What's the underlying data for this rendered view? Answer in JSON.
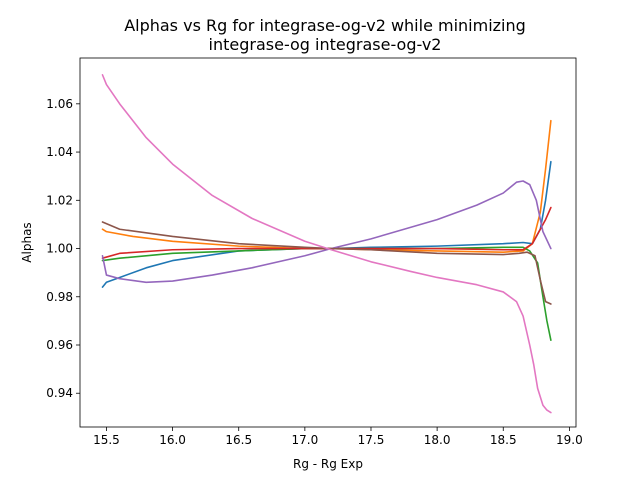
{
  "chart_data": {
    "type": "line",
    "title_lines": [
      "Alphas vs Rg for integrase-og-v2 while minimizing",
      "integrase-og integrase-og-v2"
    ],
    "xlabel": "Rg - Rg Exp",
    "ylabel": "Alphas",
    "xlim": [
      15.3,
      19.05
    ],
    "ylim": [
      0.926,
      1.079
    ],
    "xticks": [
      15.5,
      16.0,
      16.5,
      17.0,
      17.5,
      18.0,
      18.5,
      19.0
    ],
    "xtick_labels": [
      "15.5",
      "16.0",
      "16.5",
      "17.0",
      "17.5",
      "18.0",
      "18.5",
      "19.0"
    ],
    "yticks": [
      0.94,
      0.96,
      0.98,
      1.0,
      1.02,
      1.04,
      1.06
    ],
    "ytick_labels": [
      "0.94",
      "0.96",
      "0.98",
      "1.00",
      "1.02",
      "1.04",
      "1.06"
    ],
    "grid": false,
    "series": [
      {
        "color": "#1f77b4",
        "x": [
          15.47,
          15.5,
          15.6,
          15.8,
          16.0,
          16.5,
          17.0,
          17.2,
          17.5,
          18.0,
          18.5,
          18.65,
          18.72,
          18.78,
          18.82,
          18.86
        ],
        "y": [
          0.984,
          0.986,
          0.988,
          0.992,
          0.995,
          0.999,
          1.0,
          1.0,
          1.0005,
          1.001,
          1.002,
          1.0025,
          1.002,
          1.008,
          1.02,
          1.036
        ]
      },
      {
        "color": "#ff7f0e",
        "x": [
          15.47,
          15.5,
          15.7,
          16.0,
          16.5,
          17.0,
          17.2,
          17.5,
          18.0,
          18.5,
          18.65,
          18.72,
          18.78,
          18.82,
          18.86
        ],
        "y": [
          1.008,
          1.007,
          1.005,
          1.003,
          1.001,
          1.0,
          1.0,
          0.9995,
          0.999,
          0.9985,
          0.999,
          1.002,
          1.015,
          1.033,
          1.053
        ]
      },
      {
        "color": "#2ca02c",
        "x": [
          15.47,
          15.6,
          16.0,
          16.5,
          17.0,
          17.2,
          17.5,
          18.0,
          18.5,
          18.65,
          18.7,
          18.76,
          18.8,
          18.83,
          18.86
        ],
        "y": [
          0.995,
          0.996,
          0.998,
          0.999,
          1.0,
          1.0,
          1.0,
          1.0,
          1.0005,
          1.0005,
          0.999,
          0.994,
          0.98,
          0.97,
          0.962
        ]
      },
      {
        "color": "#d62728",
        "x": [
          15.47,
          15.6,
          16.0,
          16.5,
          17.0,
          17.2,
          17.5,
          18.0,
          18.5,
          18.65,
          18.72,
          18.78,
          18.82,
          18.86
        ],
        "y": [
          0.996,
          0.998,
          0.9995,
          1.0,
          1.0,
          1.0,
          1.0,
          1.0,
          0.9995,
          0.9995,
          1.002,
          1.008,
          1.012,
          1.017
        ]
      },
      {
        "color": "#9467bd",
        "x": [
          15.47,
          15.5,
          15.6,
          15.8,
          16.0,
          16.3,
          16.6,
          17.0,
          17.2,
          17.5,
          18.0,
          18.3,
          18.5,
          18.6,
          18.65,
          18.7,
          18.75,
          18.8,
          18.86
        ],
        "y": [
          0.997,
          0.989,
          0.9875,
          0.986,
          0.9865,
          0.989,
          0.992,
          0.997,
          1.0,
          1.004,
          1.012,
          1.018,
          1.023,
          1.0275,
          1.028,
          1.0265,
          1.02,
          1.007,
          1.0
        ]
      },
      {
        "color": "#8c564b",
        "x": [
          15.47,
          15.6,
          16.0,
          16.5,
          17.0,
          17.2,
          17.5,
          18.0,
          18.5,
          18.62,
          18.68,
          18.74,
          18.78,
          18.82,
          18.86
        ],
        "y": [
          1.011,
          1.008,
          1.005,
          1.002,
          1.0005,
          1.0,
          0.9995,
          0.998,
          0.9975,
          0.998,
          0.9985,
          0.997,
          0.987,
          0.978,
          0.977
        ]
      },
      {
        "color": "#e377c2",
        "x": [
          15.47,
          15.5,
          15.6,
          15.8,
          16.0,
          16.3,
          16.6,
          17.0,
          17.2,
          17.5,
          17.8,
          18.0,
          18.3,
          18.5,
          18.6,
          18.65,
          18.7,
          18.73,
          18.76,
          18.8,
          18.83,
          18.86
        ],
        "y": [
          1.072,
          1.068,
          1.06,
          1.046,
          1.035,
          1.022,
          1.0125,
          1.003,
          0.9995,
          0.9945,
          0.9905,
          0.988,
          0.985,
          0.982,
          0.978,
          0.972,
          0.96,
          0.952,
          0.942,
          0.935,
          0.933,
          0.932
        ]
      }
    ]
  }
}
